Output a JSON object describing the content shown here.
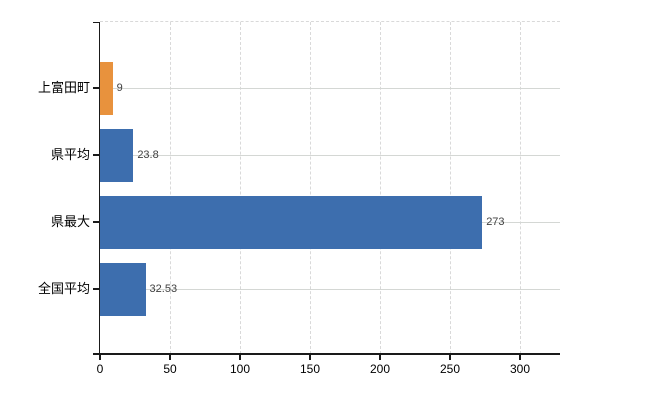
{
  "chart_data": {
    "type": "bar",
    "orientation": "horizontal",
    "title": "",
    "xlabel": "",
    "ylabel": "",
    "categories": [
      "上富田町",
      "県平均",
      "県最大",
      "全国平均"
    ],
    "values": [
      9,
      23.8,
      273,
      32.53
    ],
    "value_labels": [
      "9",
      "23.8",
      "273",
      "32.53"
    ],
    "x_ticks": [
      0,
      50,
      100,
      150,
      200,
      250,
      300
    ],
    "x_tick_labels": [
      "0",
      "50",
      "100",
      "150",
      "200",
      "250",
      "300"
    ],
    "xlim": [
      0,
      328.6
    ],
    "grid": true,
    "legend": false,
    "highlight_index": 0,
    "colors": {
      "highlight_bar": "#E8923D",
      "default_bar": "#3D6EAE",
      "grid_solid": "#D4D7D4",
      "grid_dashed": "#D9D9D9",
      "axis_line": "#1A1A1A",
      "value_label_text": "#404040",
      "axis_label_text": "#000000"
    }
  }
}
